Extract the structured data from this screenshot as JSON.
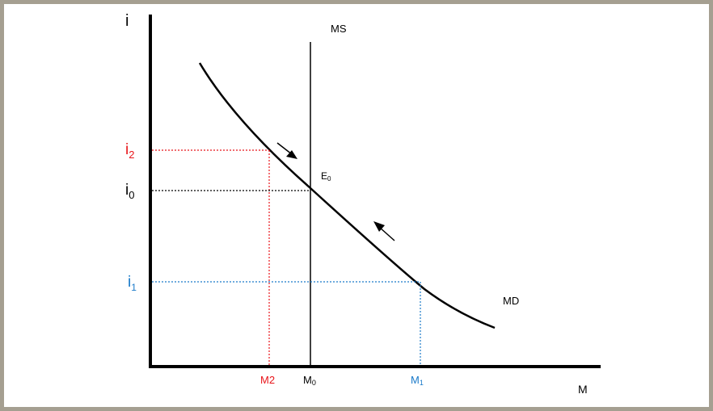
{
  "axes": {
    "y_label": "i",
    "x_label": "M"
  },
  "curves": {
    "supply_label": "MS",
    "demand_label": "MD"
  },
  "equilibrium": {
    "label": "E",
    "sub": "0"
  },
  "interest_rates": {
    "i2": {
      "base": "i",
      "sub": "2",
      "color": "#e8161b"
    },
    "i0": {
      "base": "i",
      "sub": "0",
      "color": "#000000"
    },
    "i1": {
      "base": "i",
      "sub": "1",
      "color": "#1a7ac9"
    }
  },
  "money_quantities": {
    "m2": {
      "text": "M2",
      "color": "#e8161b"
    },
    "m0": {
      "base": "M",
      "sub": "0",
      "color": "#000000"
    },
    "m1": {
      "base": "M",
      "sub": "1",
      "color": "#1a7ac9"
    }
  },
  "colors": {
    "background": "#a59f91",
    "axis": "#000000",
    "red_guides": "#e8161b",
    "blue_guides": "#1a7ac9",
    "black_guides": "#000000"
  }
}
